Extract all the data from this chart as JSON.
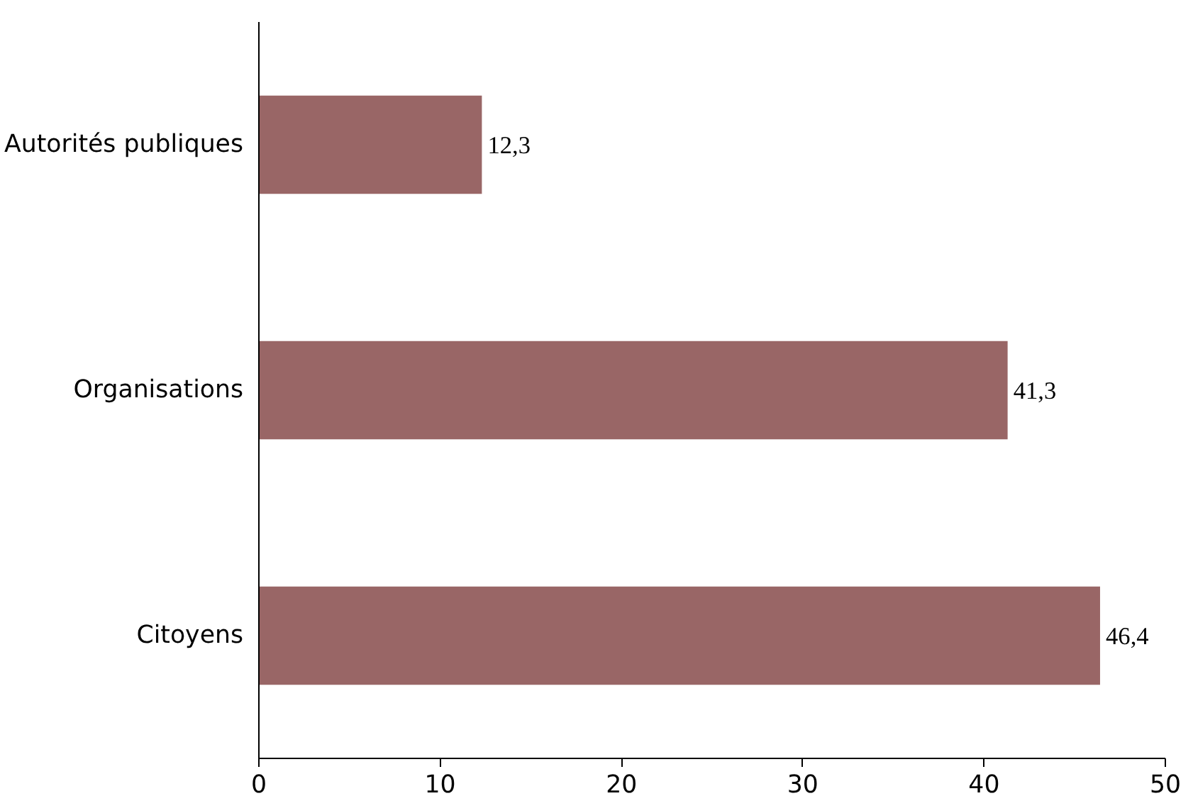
{
  "chart_data": {
    "type": "bar",
    "orientation": "horizontal",
    "categories": [
      "Autorités publiques",
      "Organisations",
      "Citoyens"
    ],
    "values": [
      12.3,
      41.3,
      46.4
    ],
    "value_labels": [
      "12,3",
      "41,3",
      "46,4"
    ],
    "color": "#996666",
    "xlim": [
      0,
      50
    ],
    "xticks": [
      0,
      10,
      20,
      30,
      40,
      50
    ],
    "grid": false
  }
}
